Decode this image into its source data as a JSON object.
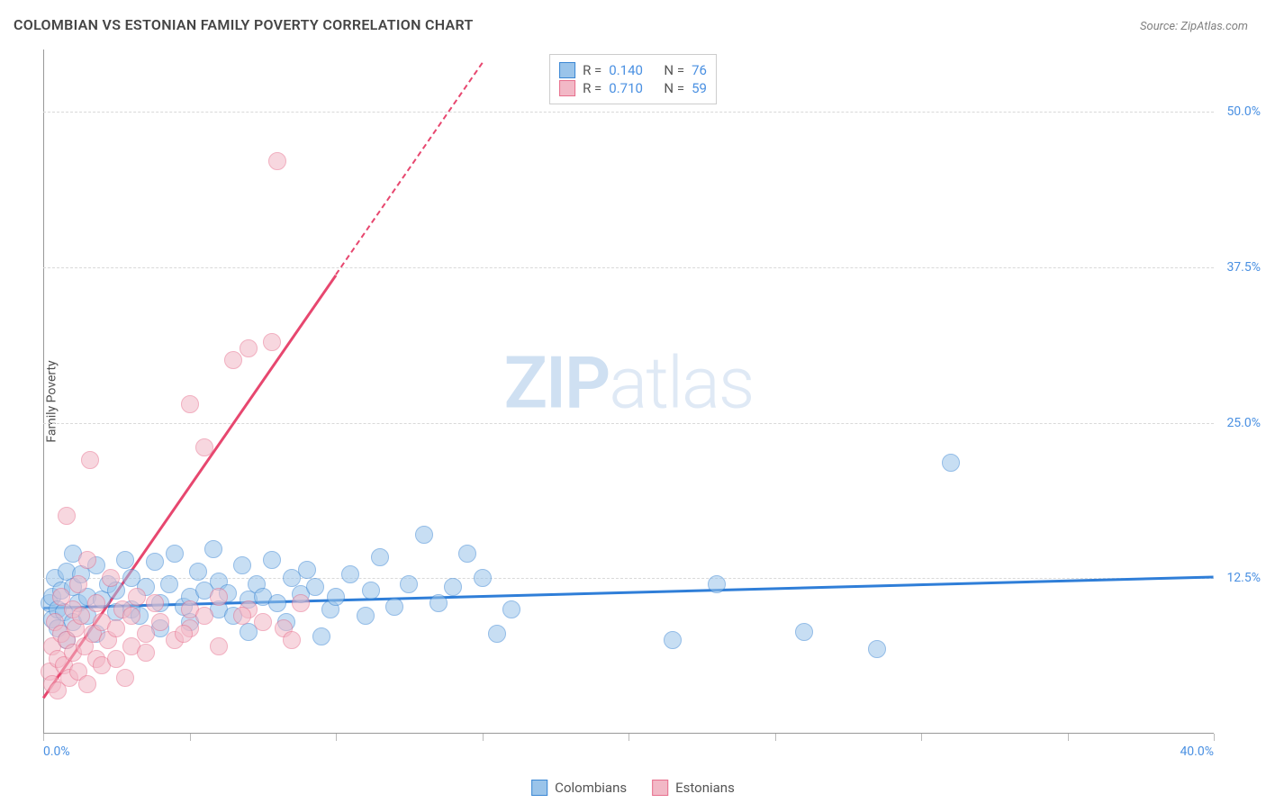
{
  "title": "COLOMBIAN VS ESTONIAN FAMILY POVERTY CORRELATION CHART",
  "source": "Source: ZipAtlas.com",
  "y_axis_label": "Family Poverty",
  "watermark": {
    "bold": "ZIP",
    "light": "atlas"
  },
  "chart": {
    "type": "scatter-with-regression",
    "background_color": "#ffffff",
    "grid_color": "#d9d9d9",
    "axis_color": "#999999",
    "xlim": [
      0,
      40
    ],
    "ylim": [
      0,
      55
    ],
    "x_ticks": [
      0,
      5,
      10,
      15,
      20,
      25,
      30,
      35,
      40
    ],
    "x_tick_labels": {
      "min": "0.0%",
      "max": "40.0%"
    },
    "y_ticks": [
      12.5,
      25.0,
      37.5,
      50.0
    ],
    "y_tick_labels": [
      "12.5%",
      "25.0%",
      "37.5%",
      "50.0%"
    ],
    "label_color": "#4a90e2",
    "label_fontsize": 14,
    "title_fontsize": 16,
    "title_color": "#454545",
    "point_radius": 9,
    "point_opacity": 0.55,
    "series": [
      {
        "name": "Colombians",
        "fill_color": "#9ac4ea",
        "stroke_color": "#3b87d4",
        "trend_color": "#2f7ed8",
        "trend": {
          "x1": 0,
          "y1": 10.2,
          "x2": 40,
          "y2": 12.7,
          "dash_from_x": null
        },
        "stats": {
          "R_label": "R =",
          "R": "0.140",
          "N_label": "N =",
          "N": "76"
        },
        "points": [
          [
            0.2,
            10.5
          ],
          [
            0.3,
            11.0
          ],
          [
            0.3,
            9.2
          ],
          [
            0.4,
            12.5
          ],
          [
            0.5,
            10.0
          ],
          [
            0.5,
            8.5
          ],
          [
            0.6,
            11.5
          ],
          [
            0.7,
            9.8
          ],
          [
            0.8,
            13.0
          ],
          [
            0.8,
            7.5
          ],
          [
            1.0,
            11.8
          ],
          [
            1.0,
            9.0
          ],
          [
            1.2,
            10.5
          ],
          [
            1.3,
            12.8
          ],
          [
            1.5,
            9.5
          ],
          [
            1.5,
            11.0
          ],
          [
            1.8,
            13.5
          ],
          [
            1.8,
            8.0
          ],
          [
            2.0,
            10.8
          ],
          [
            2.2,
            12.0
          ],
          [
            2.5,
            9.8
          ],
          [
            2.5,
            11.5
          ],
          [
            2.8,
            14.0
          ],
          [
            3.0,
            10.0
          ],
          [
            3.0,
            12.5
          ],
          [
            3.3,
            9.5
          ],
          [
            3.5,
            11.8
          ],
          [
            3.8,
            13.8
          ],
          [
            4.0,
            10.5
          ],
          [
            4.0,
            8.5
          ],
          [
            4.3,
            12.0
          ],
          [
            4.5,
            14.5
          ],
          [
            4.8,
            10.2
          ],
          [
            5.0,
            11.0
          ],
          [
            5.0,
            9.0
          ],
          [
            5.3,
            13.0
          ],
          [
            5.5,
            11.5
          ],
          [
            5.8,
            14.8
          ],
          [
            6.0,
            10.0
          ],
          [
            6.0,
            12.2
          ],
          [
            6.3,
            11.3
          ],
          [
            6.5,
            9.5
          ],
          [
            6.8,
            13.5
          ],
          [
            7.0,
            10.8
          ],
          [
            7.0,
            8.2
          ],
          [
            7.3,
            12.0
          ],
          [
            7.5,
            11.0
          ],
          [
            7.8,
            14.0
          ],
          [
            8.0,
            10.5
          ],
          [
            8.3,
            9.0
          ],
          [
            8.5,
            12.5
          ],
          [
            8.8,
            11.2
          ],
          [
            9.0,
            13.2
          ],
          [
            9.3,
            11.8
          ],
          [
            9.5,
            7.8
          ],
          [
            9.8,
            10.0
          ],
          [
            10.0,
            11.0
          ],
          [
            10.5,
            12.8
          ],
          [
            11.0,
            9.5
          ],
          [
            11.2,
            11.5
          ],
          [
            11.5,
            14.2
          ],
          [
            12.0,
            10.2
          ],
          [
            12.5,
            12.0
          ],
          [
            13.0,
            16.0
          ],
          [
            13.5,
            10.5
          ],
          [
            14.0,
            11.8
          ],
          [
            14.5,
            14.5
          ],
          [
            15.0,
            12.5
          ],
          [
            15.5,
            8.0
          ],
          [
            16.0,
            10.0
          ],
          [
            21.5,
            7.5
          ],
          [
            23.0,
            12.0
          ],
          [
            26.0,
            8.2
          ],
          [
            28.5,
            6.8
          ],
          [
            31.0,
            21.8
          ],
          [
            1.0,
            14.5
          ]
        ]
      },
      {
        "name": "Estonians",
        "fill_color": "#f2b8c6",
        "stroke_color": "#e76f8d",
        "trend_color": "#e7476f",
        "trend": {
          "x1": 0,
          "y1": 3.0,
          "x2": 15,
          "y2": 54.0,
          "dash_from_x": 10
        },
        "stats": {
          "R_label": "R =",
          "R": "0.710",
          "N_label": "N =",
          "N": "59"
        },
        "points": [
          [
            0.2,
            5.0
          ],
          [
            0.3,
            7.0
          ],
          [
            0.3,
            4.0
          ],
          [
            0.4,
            9.0
          ],
          [
            0.5,
            6.0
          ],
          [
            0.5,
            3.5
          ],
          [
            0.6,
            8.0
          ],
          [
            0.6,
            11.0
          ],
          [
            0.7,
            5.5
          ],
          [
            0.8,
            17.5
          ],
          [
            0.8,
            7.5
          ],
          [
            0.9,
            4.5
          ],
          [
            1.0,
            10.0
          ],
          [
            1.0,
            6.5
          ],
          [
            1.1,
            8.5
          ],
          [
            1.2,
            12.0
          ],
          [
            1.2,
            5.0
          ],
          [
            1.3,
            9.5
          ],
          [
            1.4,
            7.0
          ],
          [
            1.5,
            14.0
          ],
          [
            1.5,
            4.0
          ],
          [
            1.6,
            22.0
          ],
          [
            1.7,
            8.0
          ],
          [
            1.8,
            6.0
          ],
          [
            1.8,
            10.5
          ],
          [
            2.0,
            9.0
          ],
          [
            2.0,
            5.5
          ],
          [
            2.2,
            7.5
          ],
          [
            2.3,
            12.5
          ],
          [
            2.5,
            8.5
          ],
          [
            2.5,
            6.0
          ],
          [
            2.7,
            10.0
          ],
          [
            2.8,
            4.5
          ],
          [
            3.0,
            9.5
          ],
          [
            3.0,
            7.0
          ],
          [
            3.2,
            11.0
          ],
          [
            3.5,
            8.0
          ],
          [
            3.5,
            6.5
          ],
          [
            3.8,
            10.5
          ],
          [
            4.0,
            9.0
          ],
          [
            4.5,
            7.5
          ],
          [
            5.0,
            10.0
          ],
          [
            5.0,
            26.5
          ],
          [
            5.0,
            8.5
          ],
          [
            5.5,
            23.0
          ],
          [
            5.5,
            9.5
          ],
          [
            6.0,
            11.0
          ],
          [
            6.0,
            7.0
          ],
          [
            6.5,
            30.0
          ],
          [
            7.0,
            31.0
          ],
          [
            7.0,
            10.0
          ],
          [
            7.5,
            9.0
          ],
          [
            7.8,
            31.5
          ],
          [
            8.0,
            46.0
          ],
          [
            8.2,
            8.5
          ],
          [
            8.5,
            7.5
          ],
          [
            8.8,
            10.5
          ],
          [
            6.8,
            9.5
          ],
          [
            4.8,
            8.0
          ]
        ]
      }
    ]
  }
}
